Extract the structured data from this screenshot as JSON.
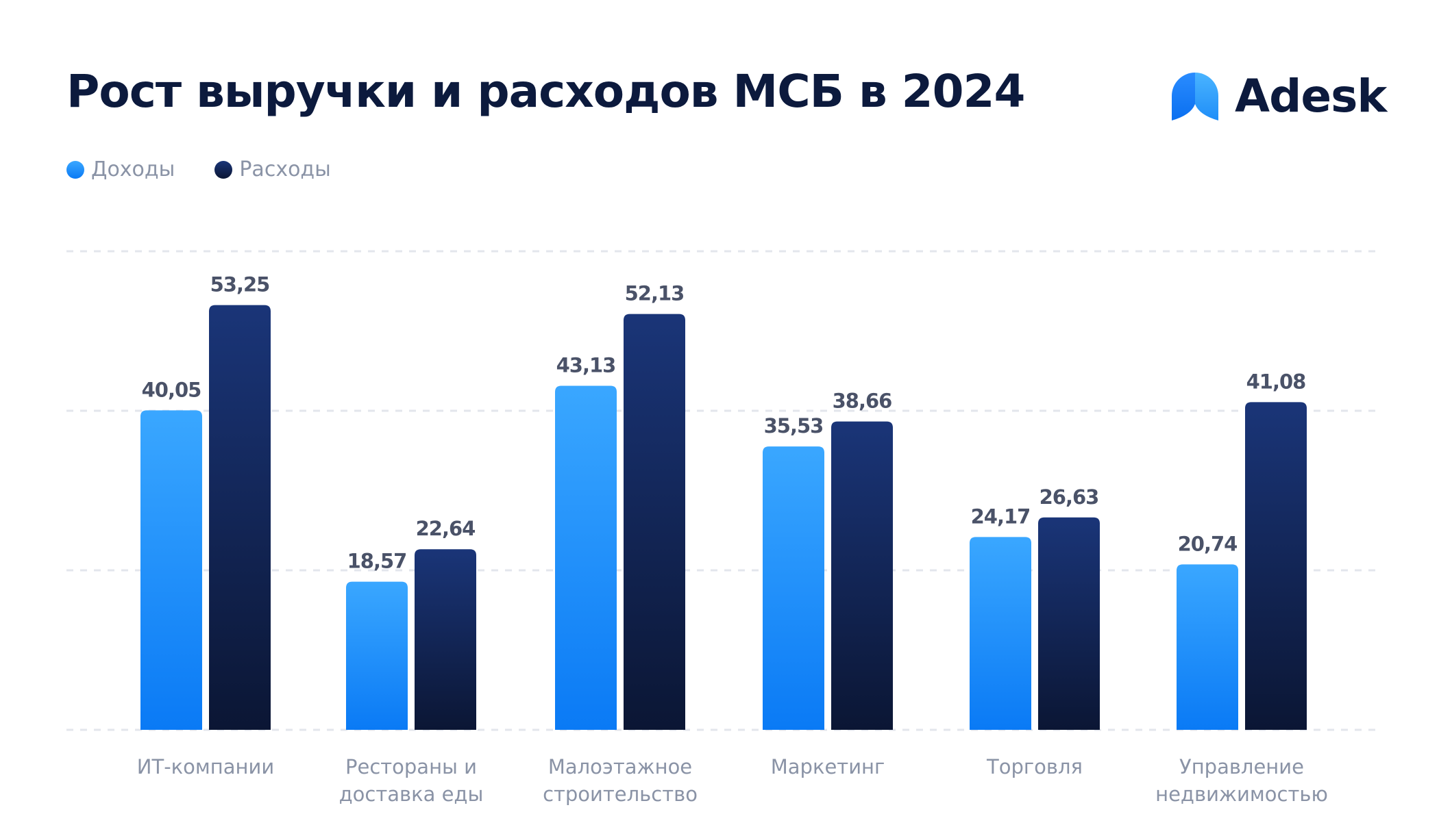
{
  "header": {
    "title": "Рост выручки и расходов МСБ в 2024",
    "brand": "Adesk"
  },
  "colors": {
    "income_top": "#3aa7ff",
    "income_bottom": "#0a7af5",
    "expense_top": "#1a3578",
    "expense_bottom": "#0b1634",
    "value_label": "#4a5268",
    "category_label": "#8a93a6",
    "grid": "#e3e6ec"
  },
  "chart_data": {
    "type": "bar",
    "categories": [
      [
        "ИТ-компании"
      ],
      [
        "Рестораны и",
        "доставка еды"
      ],
      [
        "Малоэтажное",
        "строительство"
      ],
      [
        "Маркетинг"
      ],
      [
        "Торговля"
      ],
      [
        "Управление",
        "недвижимостью"
      ]
    ],
    "series": [
      {
        "name": "Доходы",
        "values": [
          40.05,
          18.57,
          43.13,
          35.53,
          24.17,
          20.74
        ],
        "labels": [
          "40,05",
          "18,57",
          "43,13",
          "35,53",
          "24,17",
          "20,74"
        ]
      },
      {
        "name": "Расходы",
        "values": [
          53.25,
          22.64,
          52.13,
          38.66,
          26.63,
          41.08
        ],
        "labels": [
          "53,25",
          "22,64",
          "52,13",
          "38,66",
          "26,63",
          "41,08"
        ]
      }
    ],
    "ylim": [
      0,
      60
    ],
    "grid": true,
    "legend_position": "top-left"
  }
}
